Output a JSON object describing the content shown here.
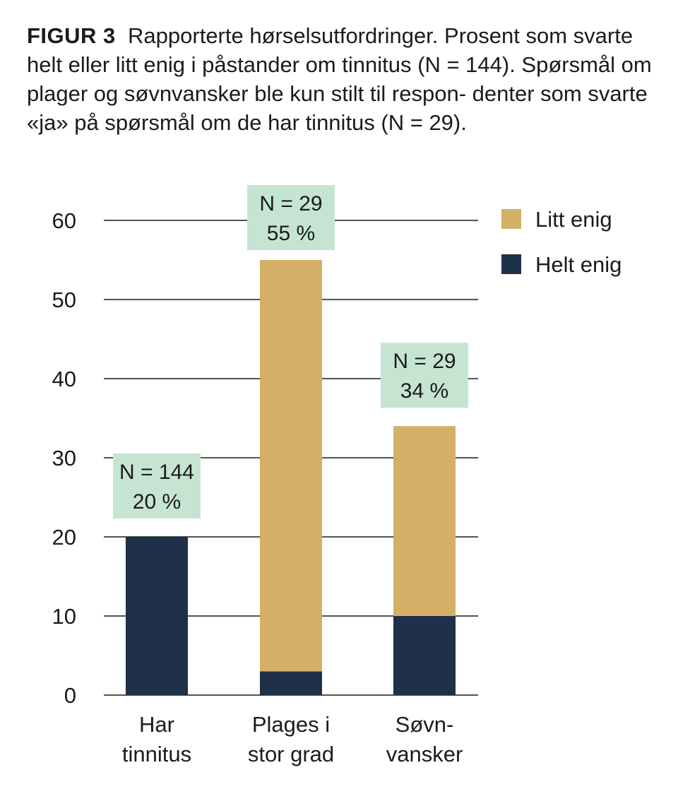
{
  "caption": {
    "label": "FIGUR 3",
    "text": "Rapporterte hørselsutfordringer. Prosent som svarte helt eller litt enig i påstander om tinnitus (N = 144). Spørsmål om plager og søvnvansker ble kun stilt til respon- denter som svarte «ja» på spørsmål om de har tinnitus (N = 29)."
  },
  "chart_data": {
    "type": "bar",
    "stacked": true,
    "categories": [
      [
        "Har",
        "tinnitus"
      ],
      [
        "Plages i",
        "stor grad"
      ],
      [
        "Søvn-",
        "vansker"
      ]
    ],
    "series": [
      {
        "name": "Helt enig",
        "color": "#1f3049",
        "values": [
          20,
          3,
          10
        ]
      },
      {
        "name": "Litt enig",
        "color": "#d4b066",
        "values": [
          0,
          52,
          24
        ]
      }
    ],
    "annotations": [
      [
        "N = 144",
        "20 %"
      ],
      [
        "N = 29",
        "55 %"
      ],
      [
        "N = 29",
        "34 %"
      ]
    ],
    "annotation_color": "#c5e5d2",
    "yticks": [
      "0",
      "10",
      "20",
      "30",
      "40",
      "50",
      "60"
    ],
    "ylim": [
      0,
      60
    ],
    "grid": true,
    "legend": {
      "placement": "top-right",
      "entries": [
        {
          "name": "Litt enig",
          "color": "#d4b066"
        },
        {
          "name": "Helt enig",
          "color": "#1f3049"
        }
      ]
    }
  }
}
